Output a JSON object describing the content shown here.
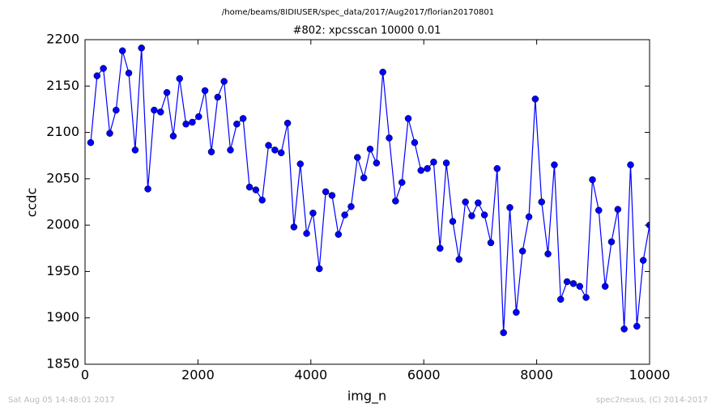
{
  "chart_data": {
    "type": "line",
    "suptitle": "/home/beams/8IDIUSER/spec_data/2017/Aug2017/florian20170801",
    "title": "#802: xpcsscan 10000 0.01",
    "x_label": "img_n",
    "y_label": "ccdc",
    "footer_left": "Sat Aug 05 14:48:01 2017",
    "footer_right": "spec2nexus, (C) 2014-2017",
    "x": [
      100,
      213,
      325,
      438,
      550,
      663,
      775,
      888,
      1000,
      1113,
      1225,
      1338,
      1450,
      1563,
      1675,
      1788,
      1900,
      2013,
      2125,
      2238,
      2350,
      2463,
      2575,
      2688,
      2800,
      2913,
      3025,
      3138,
      3250,
      3363,
      3475,
      3588,
      3700,
      3813,
      3925,
      4038,
      4150,
      4263,
      4375,
      4488,
      4600,
      4713,
      4825,
      4938,
      5050,
      5163,
      5275,
      5388,
      5500,
      5613,
      5725,
      5838,
      5950,
      6063,
      6175,
      6288,
      6400,
      6513,
      6625,
      6738,
      6850,
      6963,
      7075,
      7188,
      7300,
      7413,
      7525,
      7638,
      7750,
      7863,
      7975,
      8088,
      8200,
      8313,
      8425,
      8538,
      8650,
      8763,
      8875,
      8988,
      9100,
      9213,
      9325,
      9438,
      9550,
      9663,
      9775,
      9888,
      10000
    ],
    "series": [
      {
        "name": "ccdc",
        "color": "#0000ff",
        "values": [
          2089,
          2161,
          2169,
          2099,
          2124,
          2188,
          2164,
          2081,
          2191,
          2039,
          2124,
          2122,
          2143,
          2096,
          2158,
          2109,
          2111,
          2117,
          2145,
          2079,
          2138,
          2155,
          2081,
          2109,
          2115,
          2041,
          2038,
          2027,
          2086,
          2081,
          2078,
          2110,
          1998,
          2066,
          1991,
          2013,
          1953,
          2036,
          2032,
          1990,
          2011,
          2020,
          2073,
          2051,
          2082,
          2067,
          2165,
          2094,
          2026,
          2046,
          2115,
          2089,
          2059,
          2061,
          2068,
          1975,
          2067,
          2004,
          1963,
          2025,
          2010,
          2024,
          2011,
          1981,
          2061,
          1884,
          2019,
          1906,
          1972,
          2009,
          2136,
          2025,
          1969,
          2065,
          1920,
          1939,
          1937,
          1934,
          1922,
          2049,
          2016,
          1934,
          1982,
          2017,
          1888,
          2065,
          1891,
          1962,
          2000
        ]
      }
    ],
    "xlim": [
      0,
      10000
    ],
    "ylim": [
      1850,
      2200
    ],
    "xticks": [
      0,
      2000,
      4000,
      6000,
      8000,
      10000
    ],
    "yticks": [
      1850,
      1900,
      1950,
      2000,
      2050,
      2100,
      2150,
      2200
    ],
    "grid": false
  }
}
